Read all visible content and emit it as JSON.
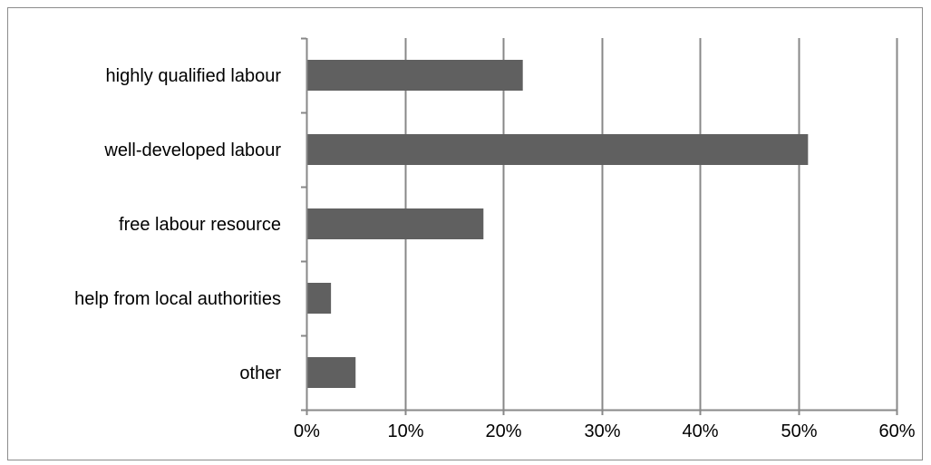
{
  "chart_data": {
    "type": "bar",
    "orientation": "horizontal",
    "title": "",
    "xlabel": "",
    "ylabel": "",
    "categories": [
      "highly qualified labour",
      "well-developed labour",
      "free labour resource",
      "help from local authorities",
      "other"
    ],
    "values": [
      22,
      51,
      18,
      2.5,
      5
    ],
    "xlim": [
      0,
      60
    ],
    "x_ticks": [
      0,
      10,
      20,
      30,
      40,
      50,
      60
    ],
    "x_tick_labels": [
      "0%",
      "10%",
      "20%",
      "30%",
      "40%",
      "50%",
      "60%"
    ],
    "grid": "vertical",
    "legend": "none",
    "bar_color": "#606060",
    "gridline_color": "#888888"
  }
}
